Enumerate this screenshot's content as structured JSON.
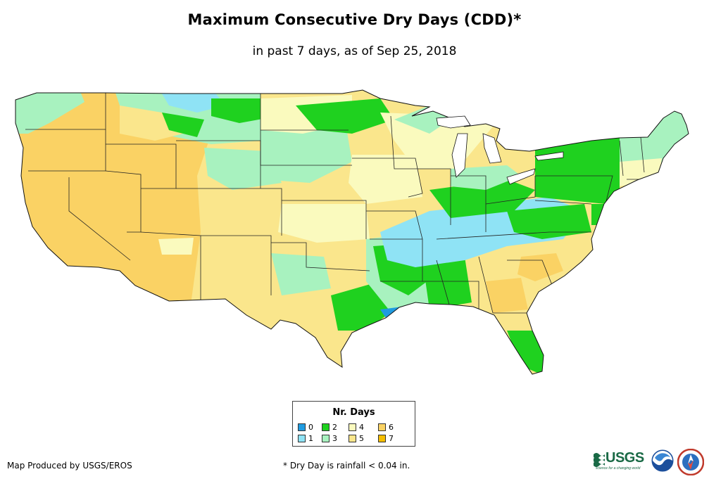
{
  "title": "Maximum Consecutive Dry Days (CDD)*",
  "subtitle": "in past 7 days, as of Sep 25, 2018",
  "legend": {
    "title": "Nr. Days",
    "items": [
      {
        "label": "0",
        "color": "#1f9be0"
      },
      {
        "label": "1",
        "color": "#8fe3f5"
      },
      {
        "label": "2",
        "color": "#1fd11f"
      },
      {
        "label": "3",
        "color": "#a8f2bf"
      },
      {
        "label": "4",
        "color": "#fafabe"
      },
      {
        "label": "5",
        "color": "#fae68c"
      },
      {
        "label": "6",
        "color": "#fad264"
      },
      {
        "label": "7",
        "color": "#f5be00"
      }
    ]
  },
  "credit": "Map Produced by USGS/EROS",
  "footnote": "* Dry Day is rainfall < 0.04 in.",
  "logos": {
    "usgs": "USGS",
    "usgs_tagline": "science for a changing world"
  }
}
